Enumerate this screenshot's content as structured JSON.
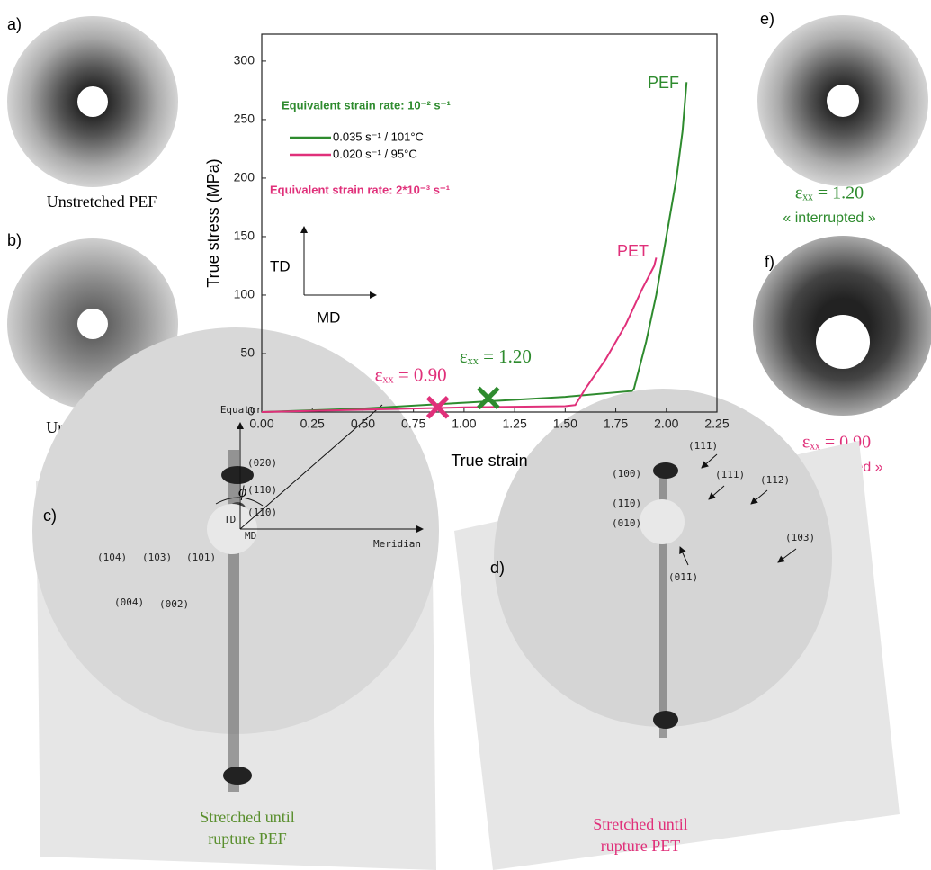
{
  "chart_data": {
    "type": "line",
    "xlabel": "True strain",
    "ylabel": "True stress (MPa)",
    "xlim": [
      0,
      2.25
    ],
    "ylim": [
      0,
      323
    ],
    "xticks": [
      {
        "value": 0,
        "label": "0.00"
      },
      {
        "value": 0.25,
        "label": "0.25"
      },
      {
        "value": 0.5,
        "label": "0.50"
      },
      {
        "value": 0.75,
        "label": "0.75"
      },
      {
        "value": 1,
        "label": "1.00"
      },
      {
        "value": 1.25,
        "label": "1.25"
      },
      {
        "value": 1.5,
        "label": "1.50"
      },
      {
        "value": 1.75,
        "label": "1.75"
      },
      {
        "value": 2,
        "label": "2.00"
      },
      {
        "value": 2.25,
        "label": "2.25"
      }
    ],
    "yticks": [
      0,
      50,
      100,
      150,
      200,
      250,
      300
    ],
    "series": [
      {
        "name": "0.035 s⁻¹ / 101°C",
        "color": "#2e8b2e",
        "x": [
          0,
          0.5,
          1.0,
          1.5,
          1.83,
          1.84,
          1.9,
          1.95,
          2.0,
          2.05,
          2.08,
          2.1
        ],
        "values": [
          0,
          3,
          8,
          13,
          18,
          20,
          60,
          100,
          150,
          200,
          240,
          282
        ]
      },
      {
        "name": "0.020 s⁻¹ / 95°C",
        "color": "#e0307a",
        "x": [
          0,
          0.5,
          1.0,
          1.5,
          1.55,
          1.6,
          1.7,
          1.8,
          1.88,
          1.94,
          1.95
        ],
        "values": [
          0,
          2,
          4,
          5,
          6,
          20,
          45,
          75,
          105,
          125,
          132
        ]
      }
    ],
    "annotations": [
      "Equivalent strain rate: 10⁻² s⁻¹",
      "Equivalent strain rate: 2*10⁻³ s⁻¹",
      "PEF",
      "PET",
      "TD",
      "MD"
    ],
    "markers": [
      {
        "label": "εₓₓ = 0.90",
        "x": 0.87,
        "y": 4,
        "color": "#e0307a"
      },
      {
        "label": "εₓₓ = 1.20",
        "x": 1.12,
        "y": 12,
        "color": "#2e8b2e"
      }
    ]
  },
  "images": [
    {
      "label": "a)",
      "caption": [
        "Unstretched PEF"
      ]
    },
    {
      "label": "b)",
      "caption": [
        "Unstretched PET"
      ]
    },
    {
      "label": "e)",
      "caption": [
        "εₓₓ = 1.20",
        "« interrupted »"
      ]
    },
    {
      "label": "f)",
      "caption": [
        "εₓₓ = 0.90",
        "« interrupted »"
      ]
    },
    {
      "label": "c)",
      "caption": [
        "Stretched until",
        "rupture PEF"
      ],
      "annotations": [
        "Equator",
        "Meridian",
        "TD",
        "MD",
        "ϕ",
        "(020)",
        "(110)",
        "(11̄0)",
        "(104)",
        "(103)",
        "(101)",
        "(004)",
        "(002)"
      ]
    },
    {
      "label": "d)",
      "caption": [
        "Stretched until",
        "rupture PET"
      ],
      "annotations": [
        "(100)",
        "(1̄10)",
        "(010)",
        "(11̄1)",
        "(1̄11)",
        "(11̄2)",
        "(1̄03)",
        "(01̄1)"
      ]
    }
  ]
}
